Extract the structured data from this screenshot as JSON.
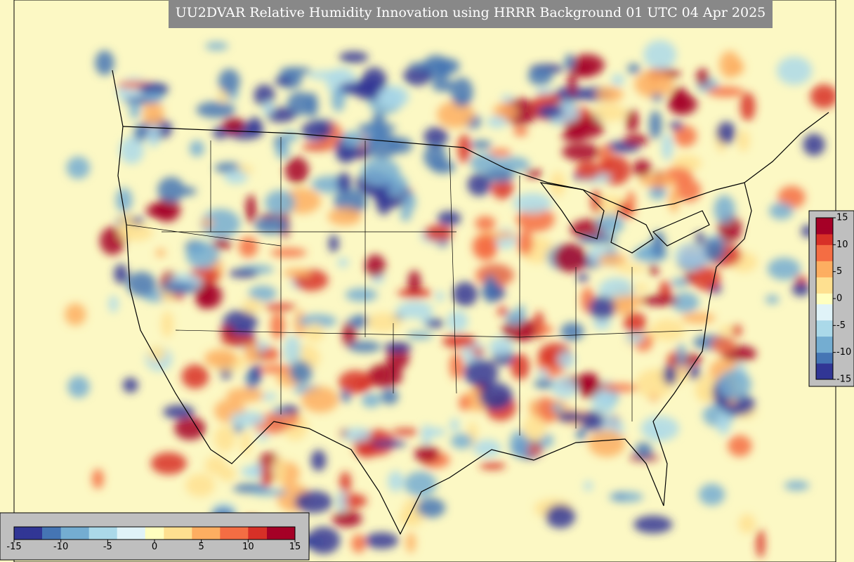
{
  "map": {
    "title": "UU2DVAR Relative Humidity Innovation using HRRR Background 01 UTC 04 Apr 2025",
    "colorbar": {
      "range": [
        -15,
        15
      ],
      "ticks": [
        -15,
        -10,
        -5,
        0,
        5,
        10,
        15
      ],
      "colors": [
        "#313695",
        "#4575b4",
        "#74add1",
        "#abd9e9",
        "#e0f3f8",
        "#ffffbf",
        "#fee090",
        "#fdae61",
        "#f46d43",
        "#d73027",
        "#a50026"
      ]
    }
  }
}
